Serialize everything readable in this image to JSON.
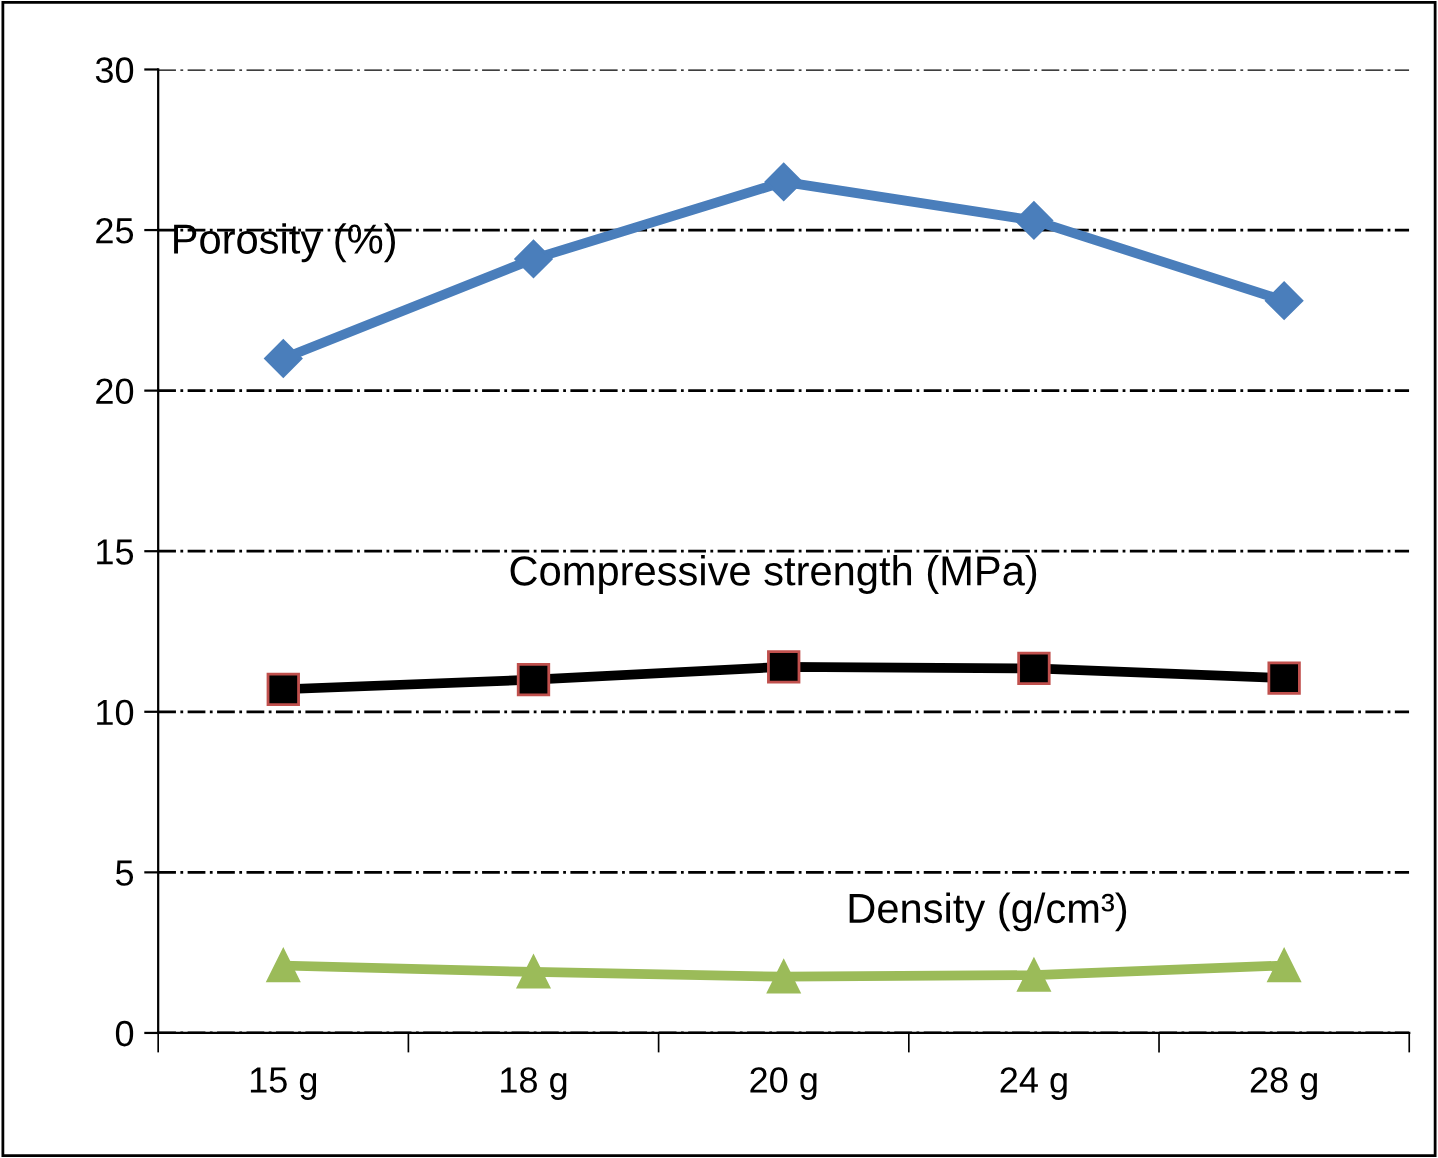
{
  "chart_data": {
    "type": "line",
    "categories": [
      "15 g",
      "18 g",
      "20 g",
      "24 g",
      "28 g"
    ],
    "series": [
      {
        "name": "Porosity (%)",
        "color": "#4a7ebb",
        "marker": "diamond",
        "values": [
          21.0,
          24.1,
          26.5,
          25.3,
          22.8
        ]
      },
      {
        "name": "Compressive strength (MPa)",
        "color": "#000000",
        "marker": "square",
        "values": [
          10.7,
          11.0,
          11.4,
          11.35,
          11.05
        ]
      },
      {
        "name": "Density (g/cm³)",
        "color": "#9bbb59",
        "marker": "triangle",
        "values": [
          2.1,
          1.9,
          1.75,
          1.8,
          2.1
        ]
      }
    ],
    "ylim": [
      0,
      30
    ],
    "yticks": [
      0,
      5,
      10,
      15,
      20,
      25,
      30
    ],
    "grid": "y",
    "legend": false
  }
}
